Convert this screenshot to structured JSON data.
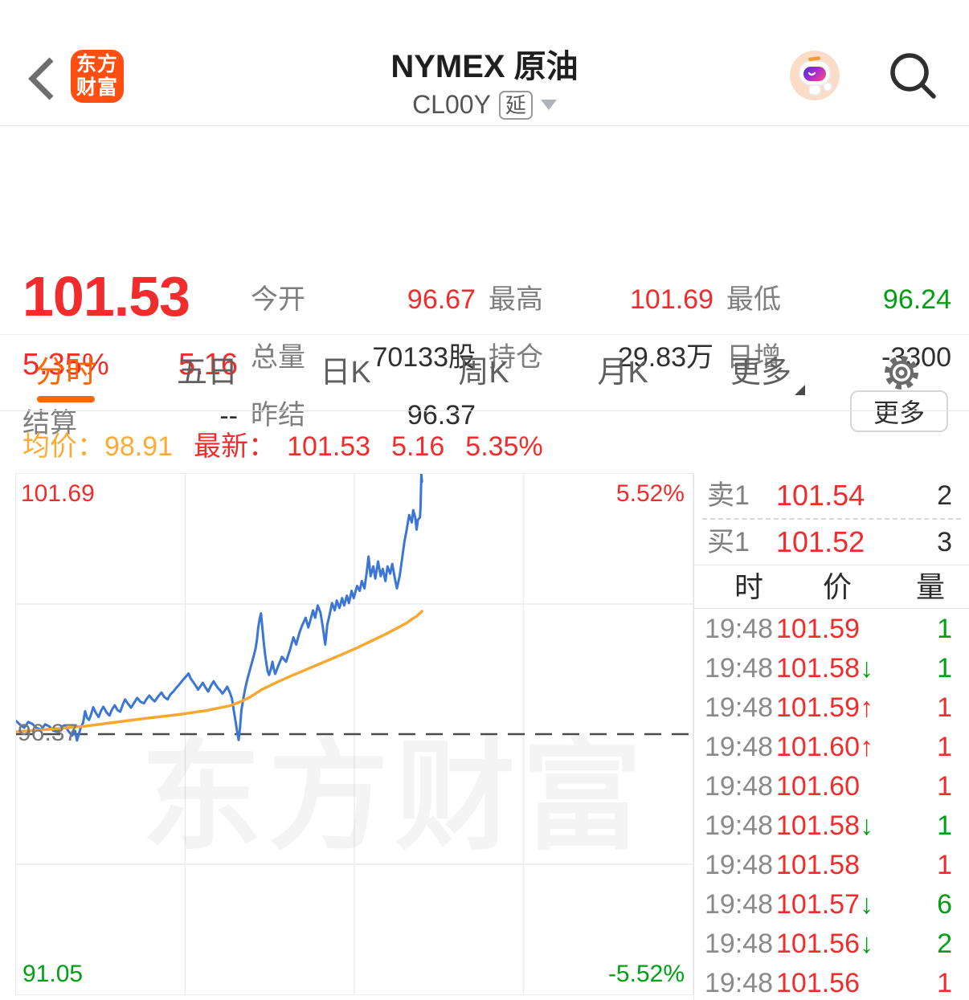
{
  "colors": {
    "red": "#f12c2c",
    "green": "#00a013",
    "tab_orange": "#ff6600",
    "amber": "#ffaa33",
    "logo_orange": "#ff4e11",
    "price_line": "#3b76d6",
    "avg_line": "#f7a833"
  },
  "header": {
    "app_name_line1": "东方",
    "app_name_line2": "财富",
    "title": "NYMEX 原油",
    "symbol": "CL00Y",
    "delayed_badge": "延"
  },
  "summary": {
    "last_price": "101.53",
    "change_percent": "5.35%",
    "change_value": "5.16",
    "settle_label": "结算",
    "settle_value": "--",
    "stats": [
      {
        "id": "open",
        "label": "今开",
        "value": "96.67",
        "color": "red"
      },
      {
        "id": "high",
        "label": "最高",
        "value": "101.69",
        "color": "red"
      },
      {
        "id": "low",
        "label": "最低",
        "value": "96.24",
        "color": "green"
      },
      {
        "id": "volume",
        "label": "总量",
        "value": "70133股",
        "color": "dark"
      },
      {
        "id": "open-interest",
        "label": "持仓",
        "value": "29.83万",
        "color": "dark"
      },
      {
        "id": "oi-change",
        "label": "日增",
        "value": "-3300",
        "color": "dark"
      },
      {
        "id": "prev-settle",
        "label": "昨结",
        "value": "96.37",
        "color": "dark"
      }
    ],
    "more_button": "更多"
  },
  "tabs": {
    "active_index": 0,
    "items": [
      {
        "id": "minute",
        "label": "分时"
      },
      {
        "id": "five-day",
        "label": "五日"
      },
      {
        "id": "daily-k",
        "label": "日K"
      },
      {
        "id": "weekly-k",
        "label": "周K"
      },
      {
        "id": "monthly-k",
        "label": "月K"
      },
      {
        "id": "more",
        "label": "更多",
        "caret": true
      }
    ]
  },
  "chart_info": {
    "avg_label": "均价：",
    "avg_value": "98.91",
    "latest_label": "最新：",
    "latest_value": "101.53",
    "latest_change": "5.16",
    "latest_percent": "5.35%"
  },
  "chart_data": {
    "type": "line",
    "title": "NYMEX原油 CL00Y 分时图",
    "ylim": [
      91.05,
      101.69
    ],
    "baseline": 96.37,
    "pct_limits": [
      "5.52%",
      "-5.52%"
    ],
    "session_fraction_plotted": 0.6,
    "x_gridlines": [
      0.25,
      0.5,
      0.75
    ],
    "y_gridlines": [
      99.03,
      93.71
    ],
    "labels": {
      "top_left": "101.69",
      "top_right": "5.52%",
      "baseline_left": "96.37",
      "bottom_left": "91.05",
      "bottom_right": "-5.52%"
    },
    "watermark": "东方财富",
    "series": [
      {
        "name": "price",
        "color": "#3b76d6",
        "width": 3,
        "points": [
          [
            0.0,
            96.64
          ],
          [
            0.006,
            96.56
          ],
          [
            0.012,
            96.5
          ],
          [
            0.018,
            96.62
          ],
          [
            0.024,
            96.58
          ],
          [
            0.03,
            96.5
          ],
          [
            0.037,
            96.46
          ],
          [
            0.043,
            96.57
          ],
          [
            0.049,
            96.53
          ],
          [
            0.055,
            96.44
          ],
          [
            0.061,
            96.42
          ],
          [
            0.067,
            96.52
          ],
          [
            0.072,
            96.55
          ],
          [
            0.078,
            96.42
          ],
          [
            0.083,
            96.34
          ],
          [
            0.087,
            96.44
          ],
          [
            0.09,
            96.24
          ],
          [
            0.093,
            96.38
          ],
          [
            0.096,
            96.52
          ],
          [
            0.099,
            96.6
          ],
          [
            0.102,
            96.84
          ],
          [
            0.105,
            96.7
          ],
          [
            0.108,
            96.66
          ],
          [
            0.111,
            96.78
          ],
          [
            0.114,
            96.92
          ],
          [
            0.118,
            96.8
          ],
          [
            0.122,
            96.72
          ],
          [
            0.126,
            96.86
          ],
          [
            0.129,
            96.93
          ],
          [
            0.134,
            96.81
          ],
          [
            0.138,
            96.75
          ],
          [
            0.142,
            96.88
          ],
          [
            0.146,
            96.96
          ],
          [
            0.15,
            96.86
          ],
          [
            0.154,
            96.83
          ],
          [
            0.158,
            96.98
          ],
          [
            0.161,
            97.08
          ],
          [
            0.166,
            96.98
          ],
          [
            0.17,
            96.91
          ],
          [
            0.175,
            97.02
          ],
          [
            0.179,
            97.11
          ],
          [
            0.184,
            97.03
          ],
          [
            0.189,
            97.0
          ],
          [
            0.193,
            97.09
          ],
          [
            0.197,
            97.16
          ],
          [
            0.201,
            97.09
          ],
          [
            0.205,
            97.04
          ],
          [
            0.21,
            97.14
          ],
          [
            0.215,
            97.22
          ],
          [
            0.219,
            97.13
          ],
          [
            0.224,
            97.08
          ],
          [
            0.228,
            97.18
          ],
          [
            0.233,
            97.25
          ],
          [
            0.237,
            97.32
          ],
          [
            0.241,
            97.38
          ],
          [
            0.245,
            97.45
          ],
          [
            0.248,
            97.5
          ],
          [
            0.252,
            97.56
          ],
          [
            0.255,
            97.61
          ],
          [
            0.258,
            97.51
          ],
          [
            0.262,
            97.43
          ],
          [
            0.266,
            97.35
          ],
          [
            0.269,
            97.28
          ],
          [
            0.273,
            97.36
          ],
          [
            0.276,
            97.42
          ],
          [
            0.28,
            97.32
          ],
          [
            0.284,
            97.24
          ],
          [
            0.288,
            97.36
          ],
          [
            0.292,
            97.45
          ],
          [
            0.295,
            97.38
          ],
          [
            0.298,
            97.32
          ],
          [
            0.302,
            97.26
          ],
          [
            0.305,
            97.2
          ],
          [
            0.309,
            97.27
          ],
          [
            0.312,
            97.34
          ],
          [
            0.316,
            97.22
          ],
          [
            0.319,
            97.1
          ],
          [
            0.322,
            96.84
          ],
          [
            0.325,
            96.58
          ],
          [
            0.327,
            96.4
          ],
          [
            0.329,
            96.25
          ],
          [
            0.331,
            96.5
          ],
          [
            0.333,
            96.85
          ],
          [
            0.336,
            97.1
          ],
          [
            0.339,
            97.32
          ],
          [
            0.342,
            97.5
          ],
          [
            0.345,
            97.65
          ],
          [
            0.348,
            97.8
          ],
          [
            0.351,
            97.95
          ],
          [
            0.354,
            98.12
          ],
          [
            0.356,
            98.3
          ],
          [
            0.358,
            98.55
          ],
          [
            0.36,
            98.72
          ],
          [
            0.362,
            98.84
          ],
          [
            0.364,
            98.55
          ],
          [
            0.366,
            98.25
          ],
          [
            0.368,
            98.0
          ],
          [
            0.37,
            97.82
          ],
          [
            0.372,
            97.65
          ],
          [
            0.374,
            97.58
          ],
          [
            0.377,
            97.72
          ],
          [
            0.379,
            97.85
          ],
          [
            0.381,
            97.7
          ],
          [
            0.383,
            97.6
          ],
          [
            0.387,
            97.75
          ],
          [
            0.393,
            97.95
          ],
          [
            0.399,
            97.85
          ],
          [
            0.405,
            98.1
          ],
          [
            0.41,
            98.35
          ],
          [
            0.414,
            98.2
          ],
          [
            0.419,
            98.45
          ],
          [
            0.423,
            98.6
          ],
          [
            0.428,
            98.75
          ],
          [
            0.432,
            98.55
          ],
          [
            0.435,
            98.7
          ],
          [
            0.439,
            98.9
          ],
          [
            0.442,
            98.75
          ],
          [
            0.446,
            99.0
          ],
          [
            0.45,
            98.85
          ],
          [
            0.453,
            98.6
          ],
          [
            0.457,
            98.2
          ],
          [
            0.46,
            98.6
          ],
          [
            0.464,
            98.85
          ],
          [
            0.467,
            99.05
          ],
          [
            0.471,
            98.9
          ],
          [
            0.474,
            99.1
          ],
          [
            0.478,
            98.95
          ],
          [
            0.482,
            99.15
          ],
          [
            0.485,
            99.0
          ],
          [
            0.489,
            99.2
          ],
          [
            0.492,
            99.05
          ],
          [
            0.496,
            99.3
          ],
          [
            0.499,
            99.15
          ],
          [
            0.504,
            99.4
          ],
          [
            0.508,
            99.3
          ],
          [
            0.511,
            99.5
          ],
          [
            0.515,
            99.35
          ],
          [
            0.518,
            99.65
          ],
          [
            0.521,
            100.0
          ],
          [
            0.524,
            99.6
          ],
          [
            0.528,
            99.8
          ],
          [
            0.531,
            99.55
          ],
          [
            0.535,
            99.9
          ],
          [
            0.539,
            99.6
          ],
          [
            0.542,
            99.75
          ],
          [
            0.546,
            99.5
          ],
          [
            0.549,
            99.8
          ],
          [
            0.553,
            99.65
          ],
          [
            0.556,
            99.85
          ],
          [
            0.56,
            99.55
          ],
          [
            0.563,
            99.35
          ],
          [
            0.567,
            99.6
          ],
          [
            0.571,
            100.0
          ],
          [
            0.574,
            100.3
          ],
          [
            0.578,
            100.6
          ],
          [
            0.581,
            100.85
          ],
          [
            0.585,
            100.7
          ],
          [
            0.587,
            100.95
          ],
          [
            0.59,
            100.8
          ],
          [
            0.592,
            100.55
          ],
          [
            0.594,
            100.75
          ],
          [
            0.597,
            100.8
          ],
          [
            0.598,
            101.05
          ],
          [
            0.599,
            101.69
          ],
          [
            0.6,
            101.53
          ]
        ]
      },
      {
        "name": "average",
        "color": "#f7a833",
        "width": 3.5,
        "points": [
          [
            0.0,
            96.42
          ],
          [
            0.05,
            96.47
          ],
          [
            0.1,
            96.53
          ],
          [
            0.145,
            96.61
          ],
          [
            0.19,
            96.69
          ],
          [
            0.24,
            96.77
          ],
          [
            0.28,
            96.85
          ],
          [
            0.316,
            96.95
          ],
          [
            0.333,
            97.04
          ],
          [
            0.345,
            97.12
          ],
          [
            0.363,
            97.28
          ],
          [
            0.387,
            97.44
          ],
          [
            0.41,
            97.58
          ],
          [
            0.434,
            97.72
          ],
          [
            0.458,
            97.86
          ],
          [
            0.482,
            98.0
          ],
          [
            0.505,
            98.14
          ],
          [
            0.529,
            98.3
          ],
          [
            0.547,
            98.42
          ],
          [
            0.565,
            98.55
          ],
          [
            0.577,
            98.64
          ],
          [
            0.585,
            98.72
          ],
          [
            0.592,
            98.78
          ],
          [
            0.6,
            98.88
          ]
        ]
      }
    ]
  },
  "order_book": {
    "ask_label": "卖1",
    "ask_price": "101.54",
    "ask_volume": "2",
    "bid_label": "买1",
    "bid_price": "101.52",
    "bid_volume": "3",
    "headers": [
      "时",
      "价",
      "量"
    ]
  },
  "trades": {
    "rows": [
      {
        "time": "19:48",
        "price": "101.59",
        "arrow": "",
        "arrow_color": "",
        "volume": "1",
        "volume_color": "green"
      },
      {
        "time": "19:48",
        "price": "101.58",
        "arrow": "↓",
        "arrow_color": "green",
        "volume": "1",
        "volume_color": "green"
      },
      {
        "time": "19:48",
        "price": "101.59",
        "arrow": "↑",
        "arrow_color": "red",
        "volume": "1",
        "volume_color": "red"
      },
      {
        "time": "19:48",
        "price": "101.60",
        "arrow": "↑",
        "arrow_color": "red",
        "volume": "1",
        "volume_color": "red"
      },
      {
        "time": "19:48",
        "price": "101.60",
        "arrow": "",
        "arrow_color": "",
        "volume": "1",
        "volume_color": "red"
      },
      {
        "time": "19:48",
        "price": "101.58",
        "arrow": "↓",
        "arrow_color": "green",
        "volume": "1",
        "volume_color": "green"
      },
      {
        "time": "19:48",
        "price": "101.58",
        "arrow": "",
        "arrow_color": "",
        "volume": "1",
        "volume_color": "red"
      },
      {
        "time": "19:48",
        "price": "101.57",
        "arrow": "↓",
        "arrow_color": "green",
        "volume": "6",
        "volume_color": "green"
      },
      {
        "time": "19:48",
        "price": "101.56",
        "arrow": "↓",
        "arrow_color": "green",
        "volume": "2",
        "volume_color": "green"
      },
      {
        "time": "19:48",
        "price": "101.56",
        "arrow": "",
        "arrow_color": "",
        "volume": "1",
        "volume_color": "red"
      }
    ]
  }
}
